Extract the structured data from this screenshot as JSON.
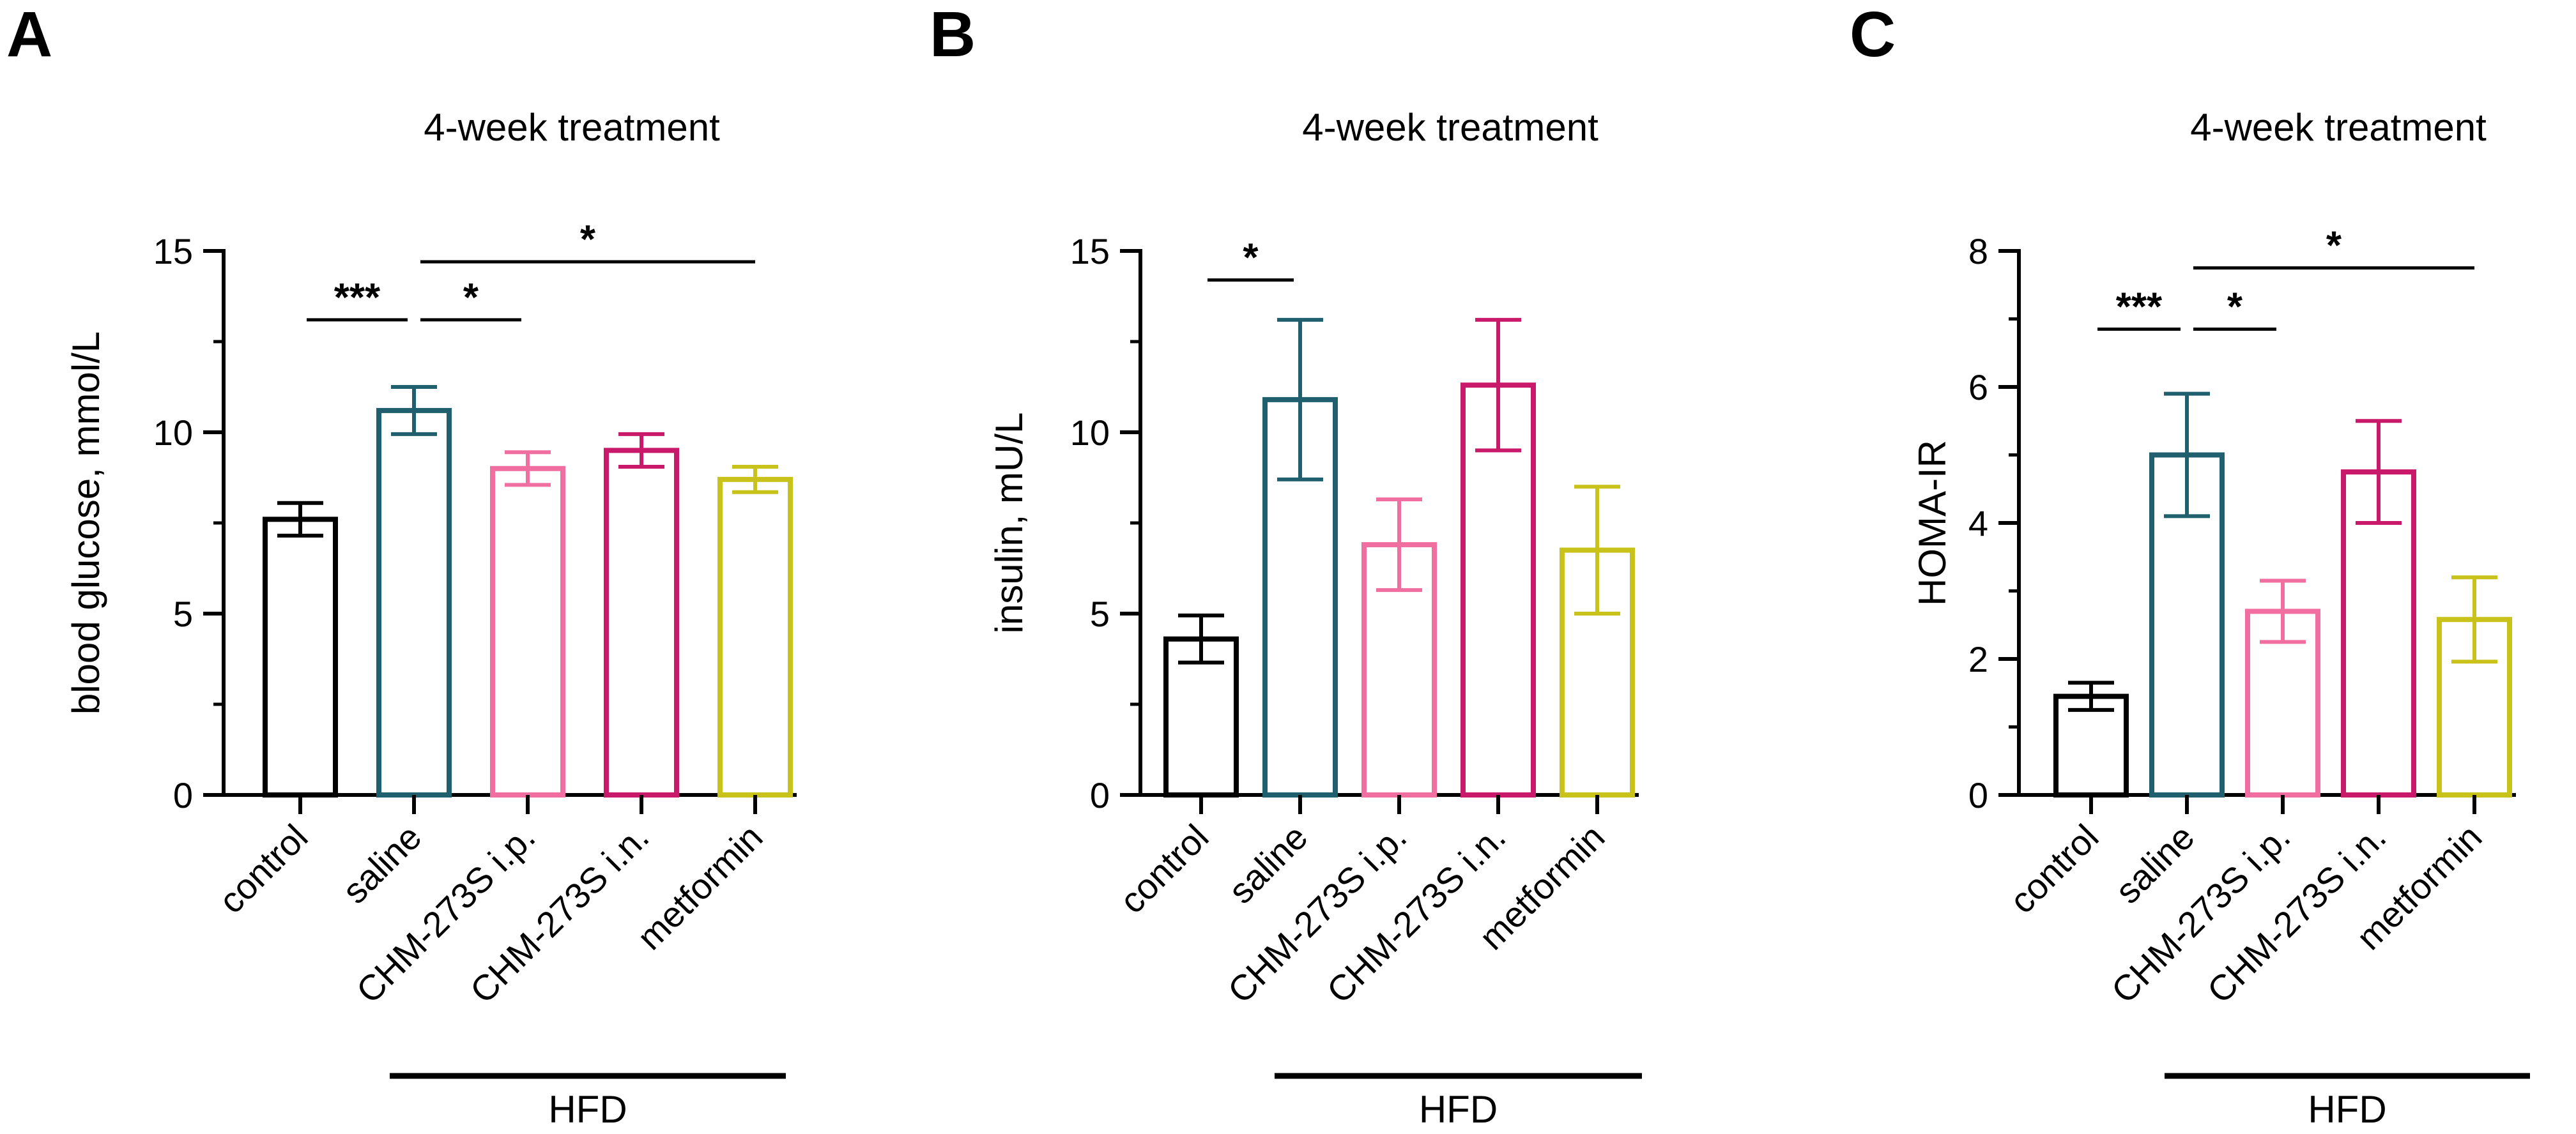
{
  "colors": {
    "control": "#000000",
    "saline": "#1f5f6e",
    "CHM-273S i.p.": "#f06fa0",
    "CHM-273S i.n.": "#c9196a",
    "metformin": "#c9c21a"
  },
  "chart_data": [
    {
      "type": "bar",
      "panel": "A",
      "title": "4-week treatment",
      "xlabel": "",
      "ylabel": "blood glucose, mmol/L",
      "categories": [
        "control",
        "saline",
        "CHM-273S i.p.",
        "CHM-273S i.n.",
        "metformin"
      ],
      "values": [
        7.6,
        10.6,
        9.0,
        9.5,
        8.7
      ],
      "errors": [
        0.45,
        0.65,
        0.45,
        0.45,
        0.35
      ],
      "ylim": [
        0,
        15
      ],
      "yticks": [
        0,
        5,
        10,
        15
      ],
      "yticklabels": [
        "0",
        "5",
        "10",
        "15"
      ],
      "minor_step": 2.5,
      "group_label": "HFD",
      "group_span": [
        1,
        4
      ],
      "significance": [
        {
          "from": 0,
          "to": 1,
          "label": "***",
          "y": 13.1
        },
        {
          "from": 1,
          "to": 2,
          "label": "*",
          "y": 13.1
        },
        {
          "from": 1,
          "to": 4,
          "label": "*",
          "y": 14.7
        }
      ]
    },
    {
      "type": "bar",
      "panel": "B",
      "title": "4-week treatment",
      "xlabel": "",
      "ylabel": "insulin, mU/L",
      "categories": [
        "control",
        "saline",
        "CHM-273S i.p.",
        "CHM-273S i.n.",
        "metformin"
      ],
      "values": [
        4.3,
        10.9,
        6.9,
        11.3,
        6.75
      ],
      "errors": [
        0.65,
        2.2,
        1.25,
        1.8,
        1.75
      ],
      "ylim": [
        0,
        15
      ],
      "yticks": [
        0,
        5,
        10,
        15
      ],
      "yticklabels": [
        "0",
        "5",
        "10",
        "15"
      ],
      "minor_step": 2.5,
      "group_label": "HFD",
      "group_span": [
        1,
        4
      ],
      "significance": [
        {
          "from": 0,
          "to": 1,
          "label": "*",
          "y": 14.2
        }
      ]
    },
    {
      "type": "bar",
      "panel": "C",
      "title": "4-week treatment",
      "xlabel": "",
      "ylabel": "HOMA-IR",
      "categories": [
        "control",
        "saline",
        "CHM-273S i.p.",
        "CHM-273S i.n.",
        "metformin"
      ],
      "values": [
        1.45,
        5.0,
        2.7,
        4.75,
        2.58
      ],
      "errors": [
        0.2,
        0.9,
        0.45,
        0.75,
        0.62
      ],
      "ylim": [
        0,
        8
      ],
      "yticks": [
        0,
        2,
        4,
        6,
        8
      ],
      "yticklabels": [
        "0",
        "2",
        "4",
        "6",
        "8"
      ],
      "minor_step": 1,
      "group_label": "HFD",
      "group_span": [
        1,
        4
      ],
      "significance": [
        {
          "from": 0,
          "to": 1,
          "label": "***",
          "y": 6.85
        },
        {
          "from": 1,
          "to": 2,
          "label": "*",
          "y": 6.85
        },
        {
          "from": 1,
          "to": 4,
          "label": "*",
          "y": 7.75
        }
      ]
    }
  ]
}
